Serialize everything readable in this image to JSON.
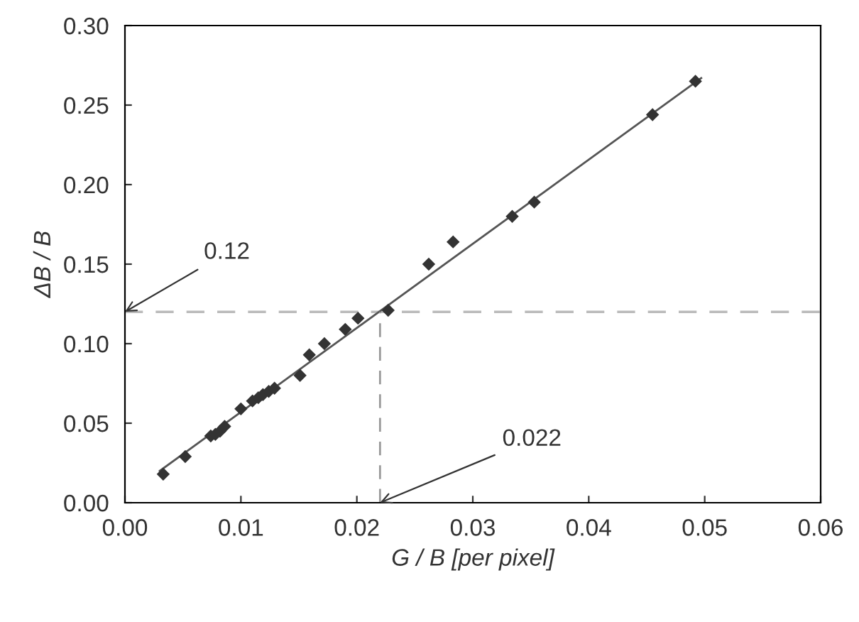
{
  "chart_data": {
    "type": "scatter",
    "xlabel": "G / B [per pixel]",
    "ylabel": "ΔB / B",
    "xlim": [
      0,
      0.06
    ],
    "xticks": [
      "0.00",
      0.01,
      0.02,
      0.03,
      0.04,
      0.05,
      0.06
    ],
    "ylim": [
      0,
      0.3
    ],
    "yticks": [
      {
        "value": 0,
        "label": "0.00"
      },
      {
        "value": 0.05,
        "label": "0.05"
      },
      {
        "value": 0.1,
        "label": "0.10"
      },
      {
        "value": 0.15,
        "label": "0.15"
      },
      {
        "value": 0.2,
        "label": "0.20"
      },
      {
        "value": 0.25,
        "label": "0.25"
      },
      {
        "value": 0.3,
        "label": "0.30"
      }
    ],
    "grid": false,
    "marker": "diamond",
    "series": [
      {
        "color": "#333333",
        "x": [
          0.0033,
          0.0052,
          0.0074,
          0.0078,
          0.0082,
          0.0086,
          0.01,
          0.011,
          0.0115,
          0.0119,
          0.0124,
          0.0129,
          0.0151,
          0.0159,
          0.0172,
          0.019,
          0.0201,
          0.0227,
          0.0262,
          0.0283,
          0.0334,
          0.0353,
          0.0455,
          0.0492
        ],
        "values": [
          0.018,
          0.029,
          0.042,
          0.043,
          0.045,
          0.048,
          0.059,
          0.064,
          0.066,
          0.068,
          0.07,
          0.072,
          0.08,
          0.093,
          0.1,
          0.109,
          0.116,
          0.121,
          0.15,
          0.164,
          0.18,
          0.189,
          0.244,
          0.265
        ]
      },
      {
        "type": "line",
        "color": "#555555",
        "marker": "none",
        "line_style": "solid",
        "x": [
          0.003,
          0.0497
        ],
        "values": [
          0.02,
          0.267
        ]
      },
      {
        "type": "line",
        "color": "#999999",
        "marker": "none",
        "line_style": "dashed",
        "x": [
          0.022,
          0.022
        ],
        "values": [
          0,
          0.12
        ]
      }
    ],
    "ref_lines": [
      {
        "axis": "y",
        "value": 0.12,
        "color": "#bbbbbb",
        "line_style": "dashed"
      }
    ],
    "annotations": [
      {
        "text": "0.12",
        "x": 0,
        "y": 0.12
      },
      {
        "text": "0.022",
        "x": 0.022,
        "y": 0
      }
    ]
  }
}
